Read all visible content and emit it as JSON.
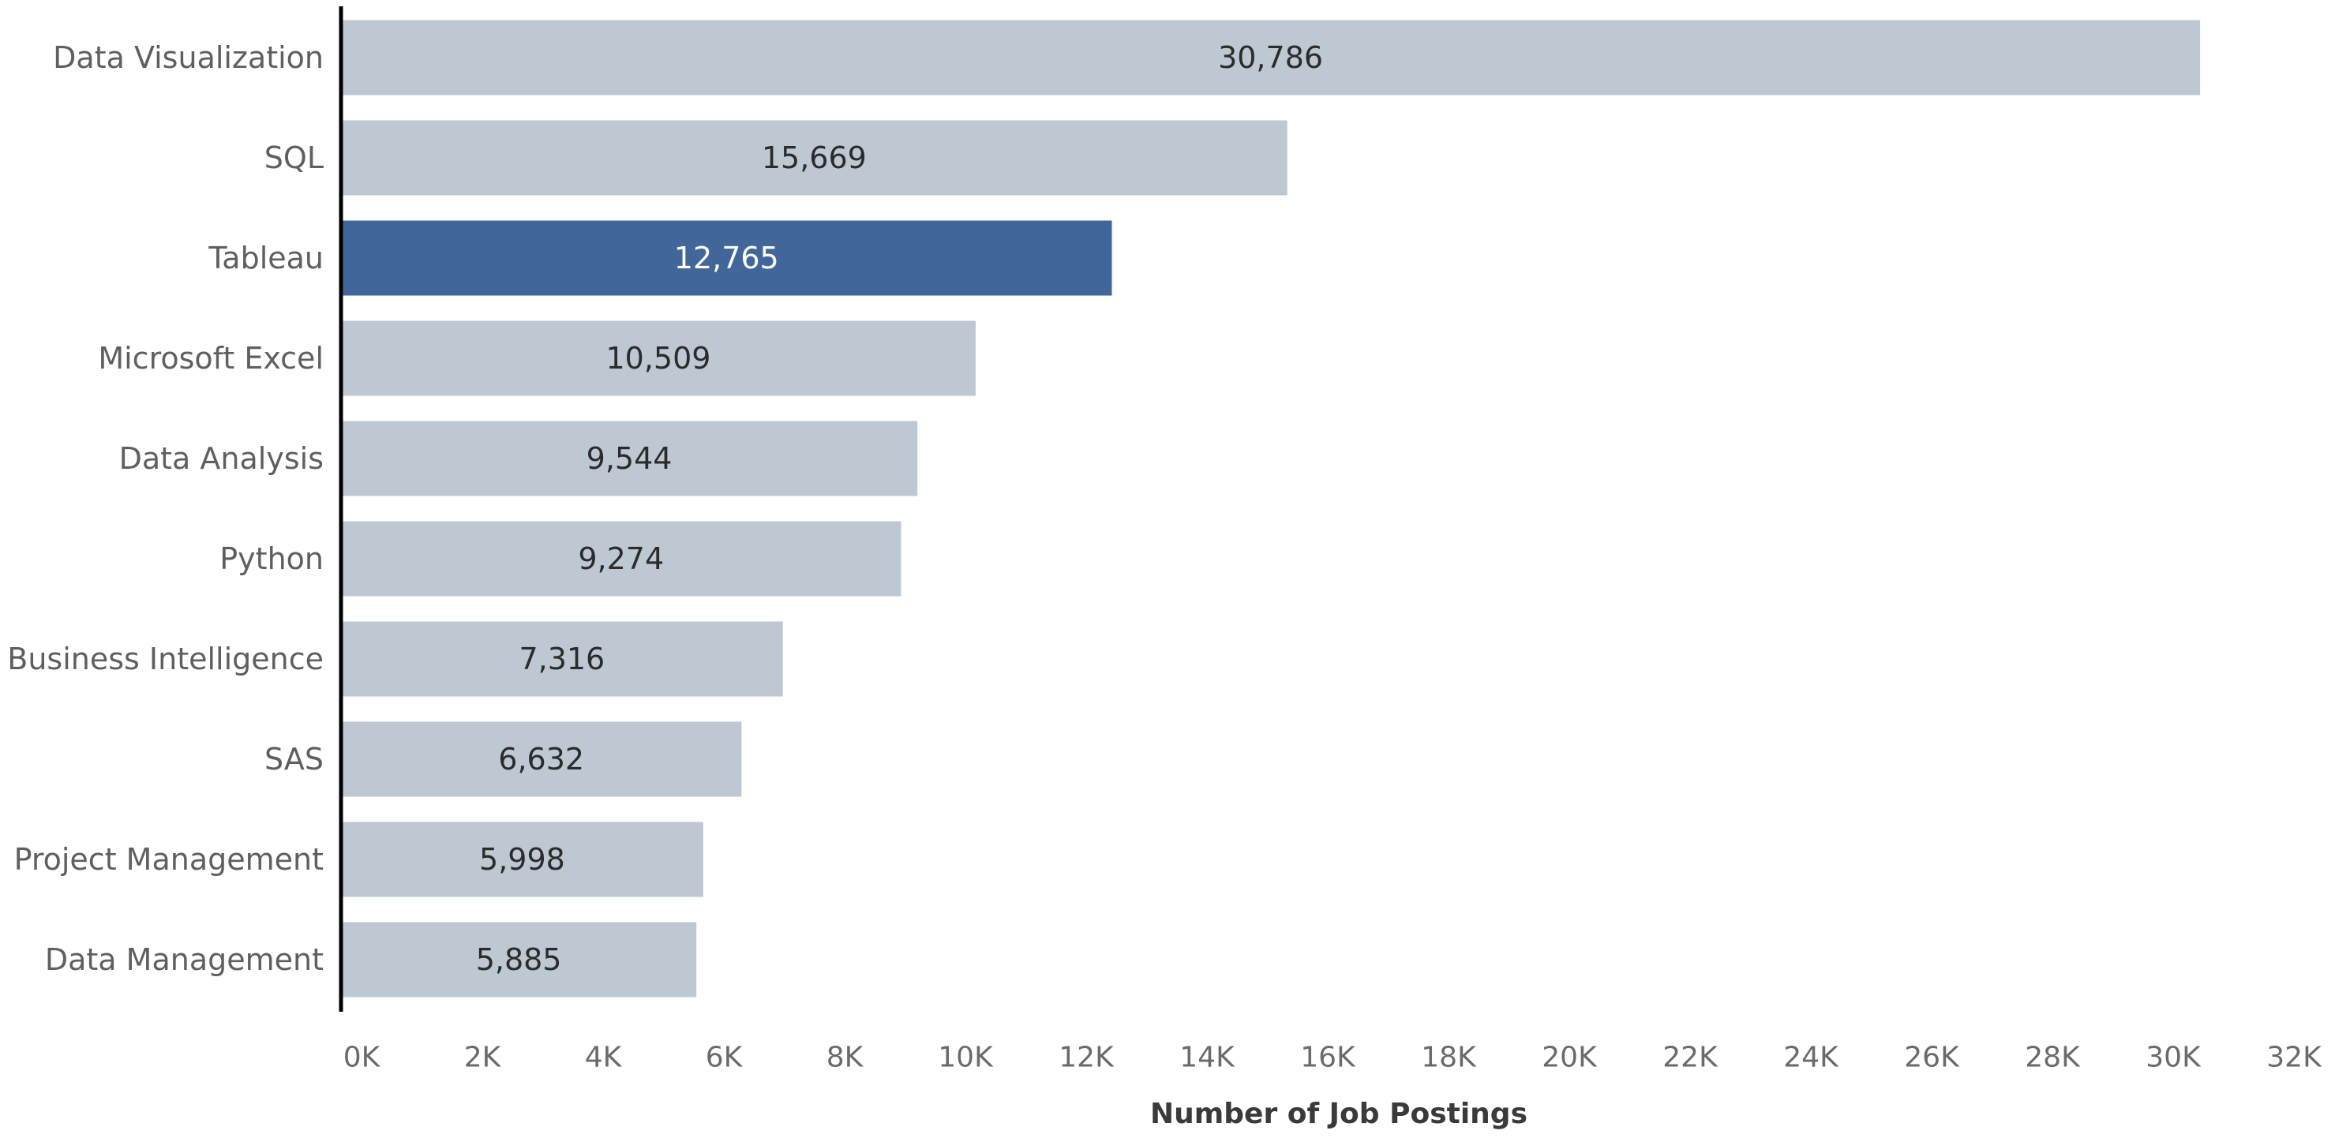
{
  "chart_data": {
    "type": "bar",
    "orientation": "horizontal",
    "categories": [
      "Data Visualization",
      "SQL",
      "Tableau",
      "Microsoft Excel",
      "Data Analysis",
      "Python",
      "Business Intelligence",
      "SAS",
      "Project Management",
      "Data Management"
    ],
    "values": [
      30786,
      15669,
      12765,
      10509,
      9544,
      9274,
      7316,
      6632,
      5998,
      5885
    ],
    "data_labels": [
      "30,786",
      "15,669",
      "12,765",
      "10,509",
      "9,544",
      "9,274",
      "7,316",
      "6,632",
      "5,998",
      "5,885"
    ],
    "highlighted_category": "Tableau",
    "xlabel": "Number of Job Postings",
    "ylabel": "",
    "xlim": [
      0,
      32000
    ],
    "x_ticks": [
      0,
      2000,
      4000,
      6000,
      8000,
      10000,
      12000,
      14000,
      16000,
      18000,
      20000,
      22000,
      24000,
      26000,
      28000,
      30000,
      32000
    ],
    "x_tick_labels": [
      "0K",
      "2K",
      "4K",
      "6K",
      "8K",
      "10K",
      "12K",
      "14K",
      "16K",
      "18K",
      "20K",
      "22K",
      "24K",
      "26K",
      "28K",
      "30K",
      "32K"
    ],
    "grid": false,
    "colors": {
      "bar": "#bec8d2",
      "highlight": "#41679a",
      "axis": "#000000"
    }
  }
}
